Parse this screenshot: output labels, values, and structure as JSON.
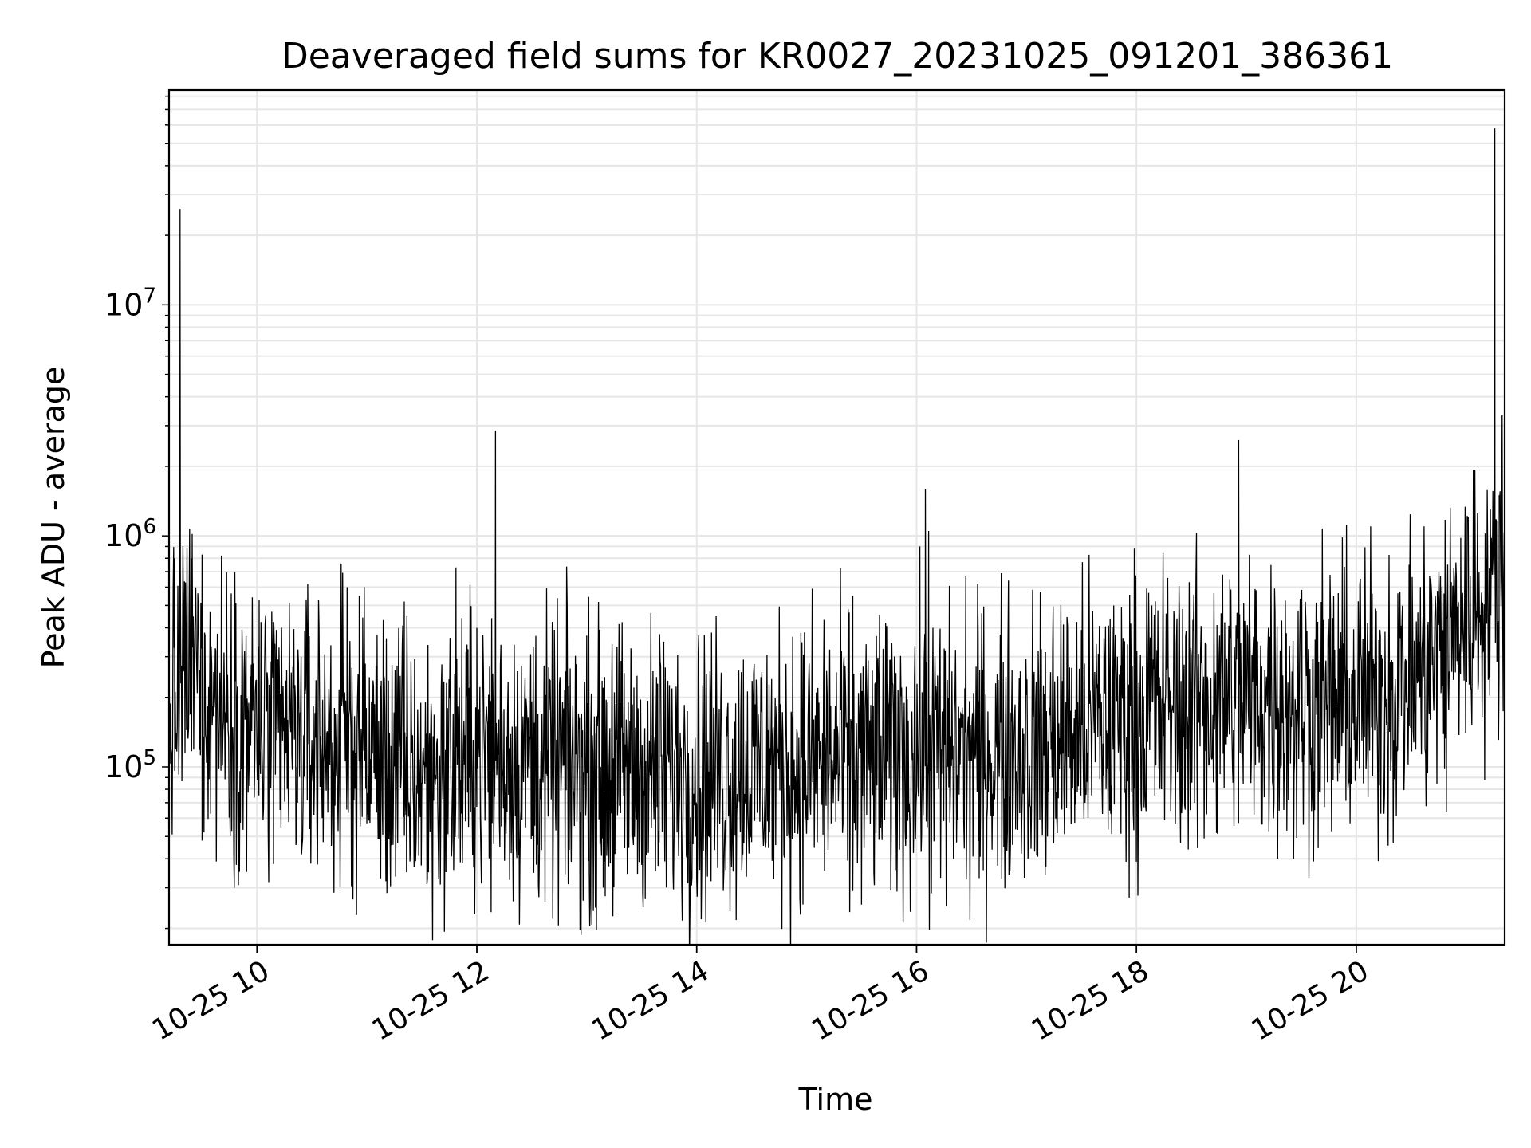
{
  "chart_data": {
    "type": "line",
    "title": "Deaveraged field sums for KR0027_20231025_091201_386361",
    "xlabel": "Time",
    "ylabel": "Peak ADU - average",
    "x_ticks": [
      "10-25 10",
      "10-25 12",
      "10-25 14",
      "10-25 16",
      "10-25 18",
      "10-25 20"
    ],
    "x_tick_hours": [
      10,
      12,
      14,
      16,
      18,
      20
    ],
    "x_range_hours": [
      9.2,
      21.35
    ],
    "y_scale": "log",
    "y_ticks": [
      {
        "base": "10",
        "exp": "5",
        "value": 100000
      },
      {
        "base": "10",
        "exp": "6",
        "value": 1000000
      },
      {
        "base": "10",
        "exp": "7",
        "value": 10000000
      }
    ],
    "ylim": [
      17000,
      85000000
    ],
    "grid": true,
    "line_color": "#000000",
    "grid_color": "#e6e6e6",
    "series_profile": [
      {
        "hour": 9.2,
        "value": 150000
      },
      {
        "hour": 9.4,
        "value": 300000
      },
      {
        "hour": 9.6,
        "value": 200000
      },
      {
        "hour": 10.0,
        "value": 140000
      },
      {
        "hour": 11.0,
        "value": 120000
      },
      {
        "hour": 11.5,
        "value": 90000
      },
      {
        "hour": 12.0,
        "value": 115000
      },
      {
        "hour": 13.0,
        "value": 100000
      },
      {
        "hour": 14.0,
        "value": 95000
      },
      {
        "hour": 15.0,
        "value": 105000
      },
      {
        "hour": 16.0,
        "value": 115000
      },
      {
        "hour": 17.0,
        "value": 120000
      },
      {
        "hour": 18.0,
        "value": 175000
      },
      {
        "hour": 19.0,
        "value": 200000
      },
      {
        "hour": 20.0,
        "value": 190000
      },
      {
        "hour": 20.5,
        "value": 230000
      },
      {
        "hour": 21.0,
        "value": 450000
      },
      {
        "hour": 21.35,
        "value": 700000
      }
    ],
    "spikes": [
      {
        "hour": 9.3,
        "value": 26000000
      },
      {
        "hour": 9.25,
        "value": 800000
      },
      {
        "hour": 9.5,
        "value": 830000
      },
      {
        "hour": 10.02,
        "value": 530000
      },
      {
        "hour": 10.82,
        "value": 600000
      },
      {
        "hour": 10.93,
        "value": 550000
      },
      {
        "hour": 11.34,
        "value": 520000
      },
      {
        "hour": 11.81,
        "value": 730000
      },
      {
        "hour": 12.17,
        "value": 2850000
      },
      {
        "hour": 12.0,
        "value": 400000
      },
      {
        "hour": 13.23,
        "value": 340000
      },
      {
        "hour": 15.42,
        "value": 550000
      },
      {
        "hour": 16.03,
        "value": 900000
      },
      {
        "hour": 16.08,
        "value": 1600000
      },
      {
        "hour": 16.11,
        "value": 1050000
      },
      {
        "hour": 18.14,
        "value": 500000
      },
      {
        "hour": 18.85,
        "value": 650000
      },
      {
        "hour": 18.93,
        "value": 2600000
      },
      {
        "hour": 19.08,
        "value": 560000
      },
      {
        "hour": 20.48,
        "value": 750000
      },
      {
        "hour": 20.95,
        "value": 980000
      },
      {
        "hour": 21.22,
        "value": 1300000
      },
      {
        "hour": 21.26,
        "value": 58000000
      },
      {
        "hour": 21.3,
        "value": 1500000
      }
    ],
    "dips": [
      {
        "hour": 12.62,
        "value": 26000
      },
      {
        "hour": 15.42,
        "value": 29000
      },
      {
        "hour": 16.27,
        "value": 25000
      },
      {
        "hour": 13.15,
        "value": 30000
      },
      {
        "hour": 9.5,
        "value": 48000
      },
      {
        "hour": 10.15,
        "value": 38000
      },
      {
        "hour": 11.36,
        "value": 35000
      },
      {
        "hour": 16.57,
        "value": 33000
      },
      {
        "hour": 17.17,
        "value": 34000
      },
      {
        "hour": 19.43,
        "value": 40000
      },
      {
        "hour": 20.82,
        "value": 64000
      },
      {
        "hour": 14.0,
        "value": 33000
      }
    ]
  }
}
